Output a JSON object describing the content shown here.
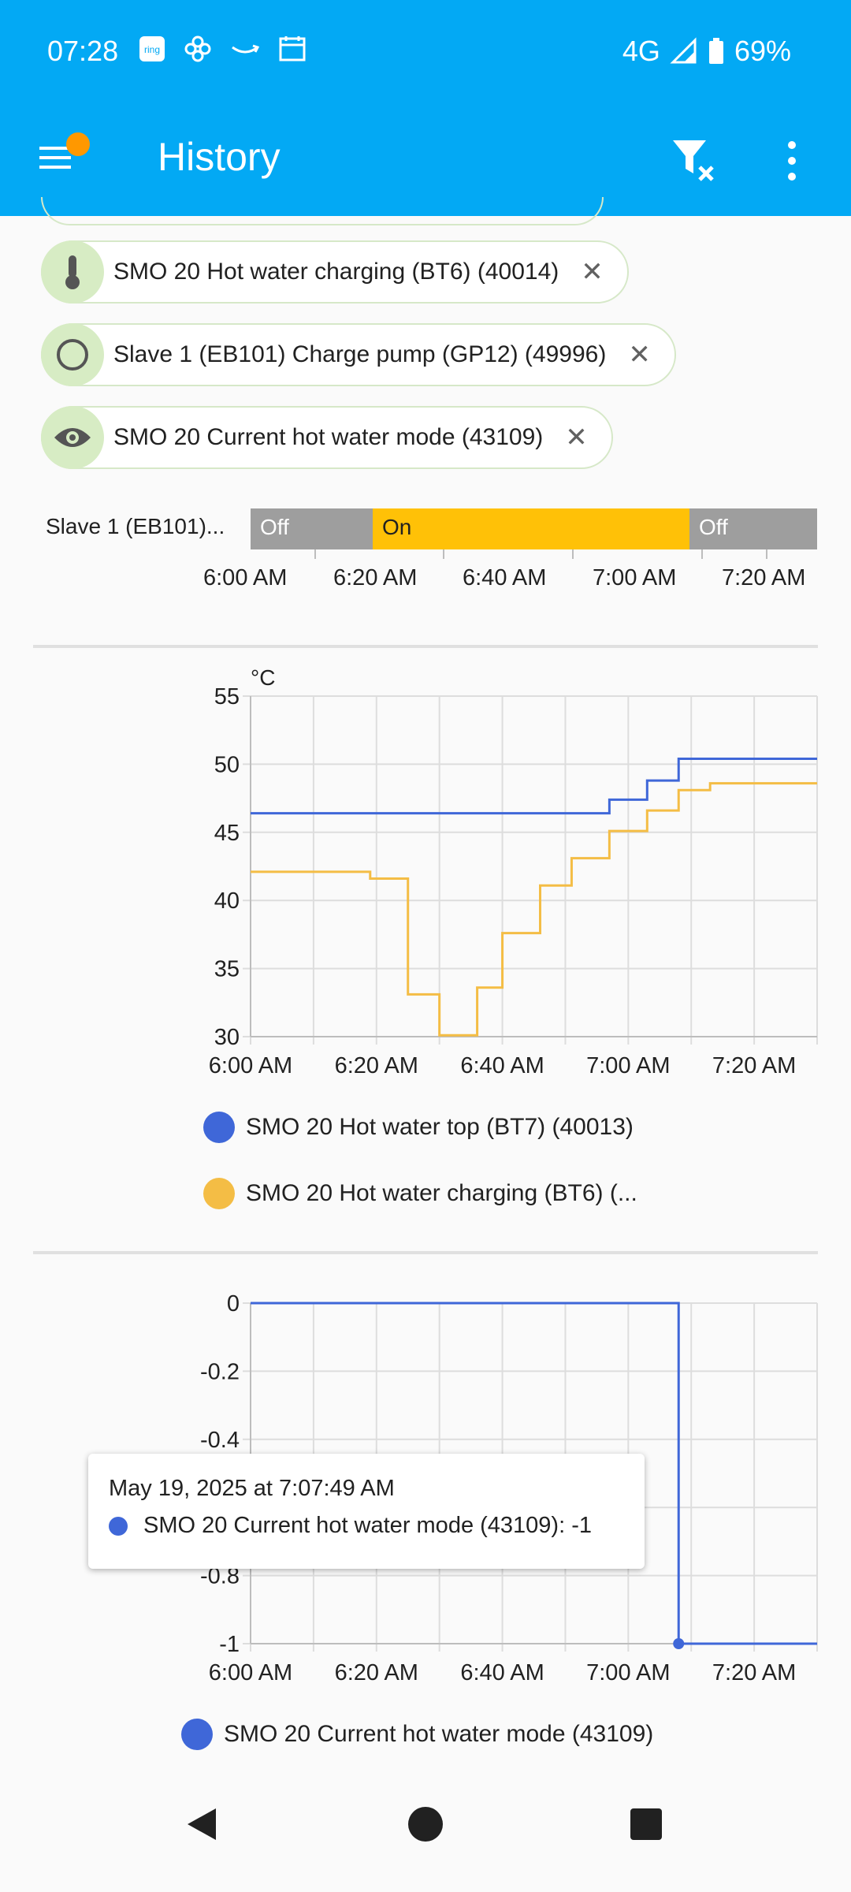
{
  "status": {
    "time": "07:28",
    "network": "4G",
    "battery": "69%"
  },
  "appbar": {
    "title": "History"
  },
  "chips": [
    {
      "label": "SMO 20 Hot water charging (BT6) (40014)",
      "icon": "thermometer-icon"
    },
    {
      "label": "Slave 1 (EB101) Charge pump (GP12) (49996)",
      "icon": "circle-outline-icon"
    },
    {
      "label": "SMO 20 Current hot water mode (43109)",
      "icon": "eye-icon"
    }
  ],
  "timeline": {
    "label": "Slave 1 (EB101)...",
    "segments": [
      {
        "state": "Off",
        "color": "#9e9e9e"
      },
      {
        "state": "On",
        "color": "#ffc107"
      },
      {
        "state": "Off",
        "color": "#9e9e9e"
      }
    ],
    "ticks": [
      "6:00 AM",
      "6:20 AM",
      "6:40 AM",
      "7:00 AM",
      "7:20 AM"
    ]
  },
  "chart_data": [
    {
      "type": "line",
      "unit": "°C",
      "ylim": [
        30,
        55
      ],
      "yticks": [
        "55",
        "50",
        "45",
        "40",
        "35",
        "30"
      ],
      "xticks": [
        "6:00 AM",
        "6:20 AM",
        "6:40 AM",
        "7:00 AM",
        "7:20 AM"
      ],
      "series": [
        {
          "name": "SMO 20 Hot water top (BT7) (40013)",
          "color": "#3f67d8",
          "step": true,
          "x_minutes": [
            0,
            57,
            63,
            68,
            90
          ],
          "y": [
            46.4,
            47.4,
            48.8,
            50.4,
            50.4
          ]
        },
        {
          "name": "SMO 20 Hot water charging (BT6) (...",
          "color": "#f4bd45",
          "step": true,
          "x_minutes": [
            0,
            19,
            25,
            30,
            36,
            40,
            46,
            51,
            57,
            63,
            68,
            73,
            90
          ],
          "y": [
            42.1,
            41.6,
            33.1,
            30.1,
            33.6,
            37.6,
            41.1,
            43.1,
            45.1,
            46.6,
            48.1,
            48.6,
            48.6
          ]
        }
      ],
      "grid": true
    },
    {
      "type": "line",
      "ylim": [
        -1,
        0
      ],
      "yticks": [
        "0",
        "-0.2",
        "-0.4",
        "-0.6",
        "-0.8",
        "-1"
      ],
      "xticks": [
        "6:00 AM",
        "6:20 AM",
        "6:40 AM",
        "7:00 AM",
        "7:20 AM"
      ],
      "series": [
        {
          "name": "SMO 20 Current hot water mode (43109)",
          "color": "#3f67d8",
          "step": true,
          "x_minutes": [
            0,
            68,
            90
          ],
          "y": [
            0,
            -1,
            -1
          ]
        }
      ],
      "grid": true,
      "tooltip": {
        "time": "May 19, 2025 at 7:07:49 AM",
        "text": "SMO 20 Current hot water mode (43109): -1"
      }
    }
  ]
}
